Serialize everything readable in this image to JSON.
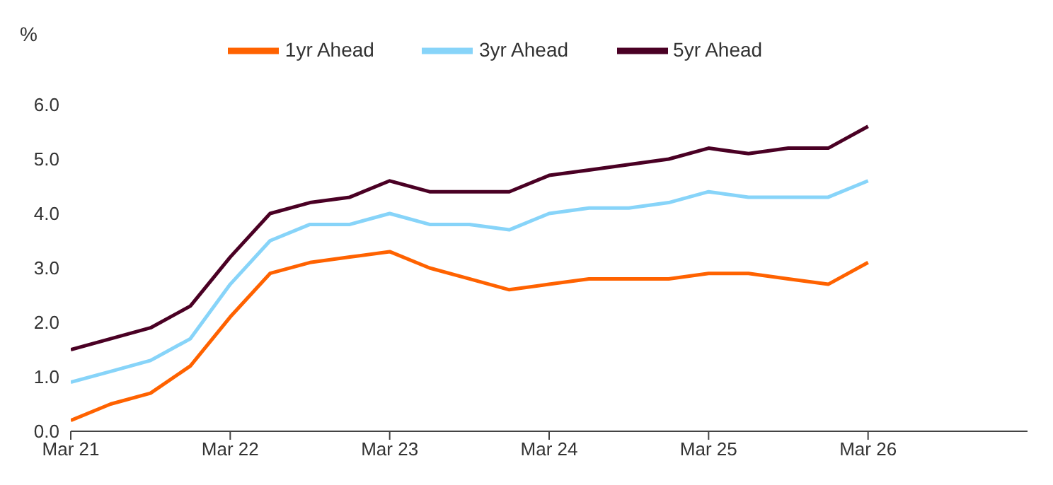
{
  "chart_data": {
    "type": "line",
    "ylabel": "%",
    "x": [
      "2021-03",
      "2021-06",
      "2021-09",
      "2021-12",
      "2022-03",
      "2022-06",
      "2022-09",
      "2022-12",
      "2023-03",
      "2023-06",
      "2023-09",
      "2023-12",
      "2024-03",
      "2024-06",
      "2024-09",
      "2024-12",
      "2025-03",
      "2025-06",
      "2025-09",
      "2025-12",
      "2026-03"
    ],
    "series": [
      {
        "name": "1yr Ahead",
        "color": "#ff6200",
        "values": [
          0.2,
          0.5,
          0.7,
          1.2,
          2.1,
          2.9,
          3.1,
          3.2,
          3.3,
          3.0,
          2.8,
          2.6,
          2.7,
          2.8,
          2.8,
          2.8,
          2.9,
          2.9,
          2.8,
          2.7,
          3.1
        ]
      },
      {
        "name": "3yr Ahead",
        "color": "#87d4f9",
        "values": [
          0.9,
          1.1,
          1.3,
          1.7,
          2.7,
          3.5,
          3.8,
          3.8,
          4.0,
          3.8,
          3.8,
          3.7,
          4.0,
          4.1,
          4.1,
          4.2,
          4.4,
          4.3,
          4.3,
          4.3,
          4.6
        ]
      },
      {
        "name": "5yr Ahead",
        "color": "#4a0024",
        "values": [
          1.5,
          1.7,
          1.9,
          2.3,
          3.2,
          4.0,
          4.2,
          4.3,
          4.6,
          4.4,
          4.4,
          4.4,
          4.7,
          4.8,
          4.9,
          5.0,
          5.2,
          5.1,
          5.2,
          5.2,
          5.6
        ]
      }
    ],
    "xlim": [
      "2021-03",
      "2027-03"
    ],
    "xticks": [
      {
        "value": "2021-03",
        "label": "Mar 21"
      },
      {
        "value": "2022-03",
        "label": "Mar 22"
      },
      {
        "value": "2023-03",
        "label": "Mar 23"
      },
      {
        "value": "2024-03",
        "label": "Mar 24"
      },
      {
        "value": "2025-03",
        "label": "Mar 25"
      },
      {
        "value": "2026-03",
        "label": "Mar 26"
      }
    ],
    "ylim": [
      0,
      6
    ],
    "yticks": [
      {
        "value": 0,
        "label": "0.0"
      },
      {
        "value": 1,
        "label": "1.0"
      },
      {
        "value": 2,
        "label": "2.0"
      },
      {
        "value": 3,
        "label": "3.0"
      },
      {
        "value": 4,
        "label": "4.0"
      },
      {
        "value": 5,
        "label": "5.0"
      },
      {
        "value": 6,
        "label": "6.0"
      }
    ],
    "grid": false,
    "legend": "top",
    "marker": "none",
    "line_style": "solid"
  }
}
